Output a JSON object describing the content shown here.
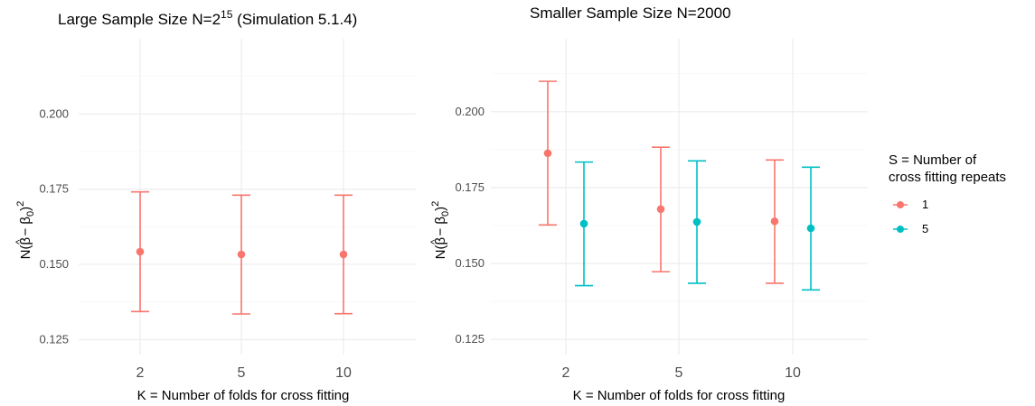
{
  "colors": {
    "s1": "#F8766D",
    "s5": "#00BFC4"
  },
  "legend": {
    "title_line1": "S = Number of",
    "title_line2": "cross fitting repeats",
    "entries": [
      {
        "label": "1",
        "color": "#F8766D"
      },
      {
        "label": "5",
        "color": "#00BFC4"
      }
    ]
  },
  "chart_data": [
    {
      "type": "scatter",
      "title_main": "Large Sample Size N=2",
      "title_sup": "15",
      "title_rest": " (Simulation 5.1.4)",
      "xlabel": "K = Number of folds for cross fitting",
      "ylabel": "N(β̂ − β0)²",
      "categories": [
        "2",
        "5",
        "10"
      ],
      "ylim": [
        0.12,
        0.225
      ],
      "yticks": [
        0.125,
        0.15,
        0.175,
        0.2
      ],
      "ytick_labels": [
        "0.125",
        "0.150",
        "0.175",
        "0.200"
      ],
      "grid": true,
      "series": [
        {
          "name": "1",
          "color": "#F8766D",
          "estimates": [
            0.1542,
            0.1533,
            0.1533
          ],
          "lower": [
            0.1343,
            0.1335,
            0.1336
          ],
          "upper": [
            0.1741,
            0.173,
            0.173
          ]
        }
      ]
    },
    {
      "type": "scatter",
      "title_main": "Smaller Sample Size N=2000",
      "title_sup": "",
      "title_rest": "",
      "xlabel": "K = Number of folds for cross fitting",
      "ylabel": "N(β̂ − β0)²",
      "categories": [
        "2",
        "5",
        "10"
      ],
      "ylim": [
        0.12,
        0.224
      ],
      "yticks": [
        0.125,
        0.15,
        0.175,
        0.2
      ],
      "ytick_labels": [
        "0.125",
        "0.150",
        "0.175",
        "0.200"
      ],
      "grid": true,
      "series": [
        {
          "name": "1",
          "color": "#F8766D",
          "estimates": [
            0.1863,
            0.1679,
            0.1639
          ],
          "lower": [
            0.1627,
            0.1473,
            0.1435
          ],
          "upper": [
            0.21,
            0.1883,
            0.1841
          ]
        },
        {
          "name": "5",
          "color": "#00BFC4",
          "estimates": [
            0.1631,
            0.1637,
            0.1616
          ],
          "lower": [
            0.1427,
            0.1435,
            0.1413
          ],
          "upper": [
            0.1834,
            0.1838,
            0.1817
          ]
        }
      ]
    }
  ]
}
